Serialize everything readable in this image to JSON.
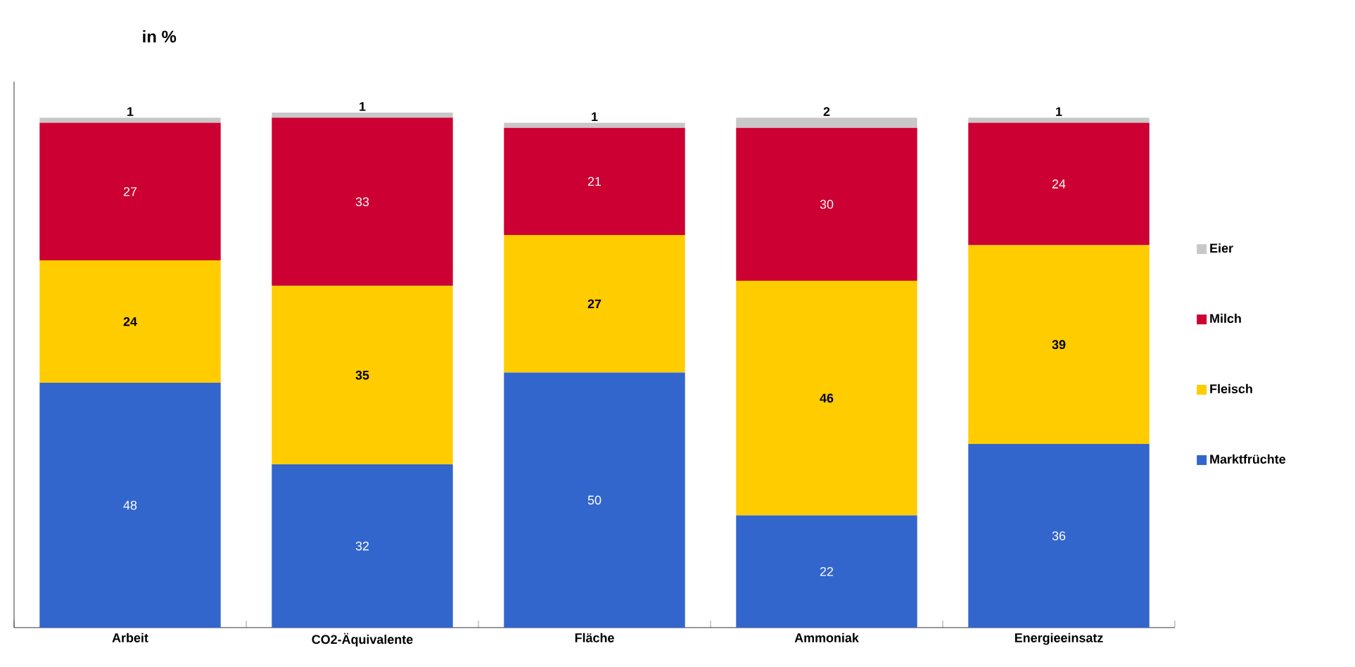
{
  "chart_data": {
    "type": "bar",
    "stacked": true,
    "ylabel": "in %",
    "categories": [
      "Arbeit",
      "CO2-Äquivalente",
      "Fläche",
      "Ammoniak",
      "Energieeinsatz"
    ],
    "series": [
      {
        "name": "Marktfrüchte",
        "color": "#3366cc",
        "values": [
          48,
          32,
          50,
          22,
          36
        ]
      },
      {
        "name": "Fleisch",
        "color": "#ffcc00",
        "values": [
          24,
          35,
          27,
          46,
          39
        ]
      },
      {
        "name": "Milch",
        "color": "#cc0033",
        "values": [
          27,
          33,
          21,
          30,
          24
        ]
      },
      {
        "name": "Eier",
        "color": "#c8c8c8",
        "values": [
          1,
          1,
          1,
          2,
          1
        ]
      }
    ],
    "data_labels": true,
    "legend": "right"
  }
}
